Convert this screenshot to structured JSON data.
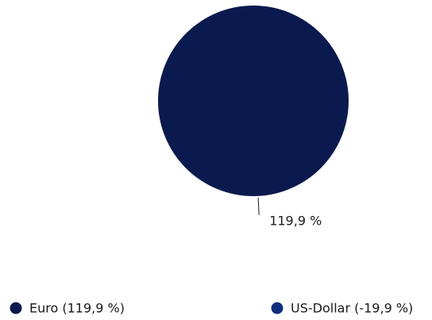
{
  "chart_data": {
    "type": "pie",
    "categories": [
      "Euro",
      "US-Dollar"
    ],
    "legend_labels": [
      "Euro (119,9 %)",
      "US-Dollar (-19,9 %)"
    ],
    "values": [
      119.9,
      -19.9
    ],
    "value_labels": [
      "119,9 %",
      null
    ],
    "colors": [
      "#0b1a4e",
      "#0f2f7d"
    ],
    "legend": "bottom"
  }
}
